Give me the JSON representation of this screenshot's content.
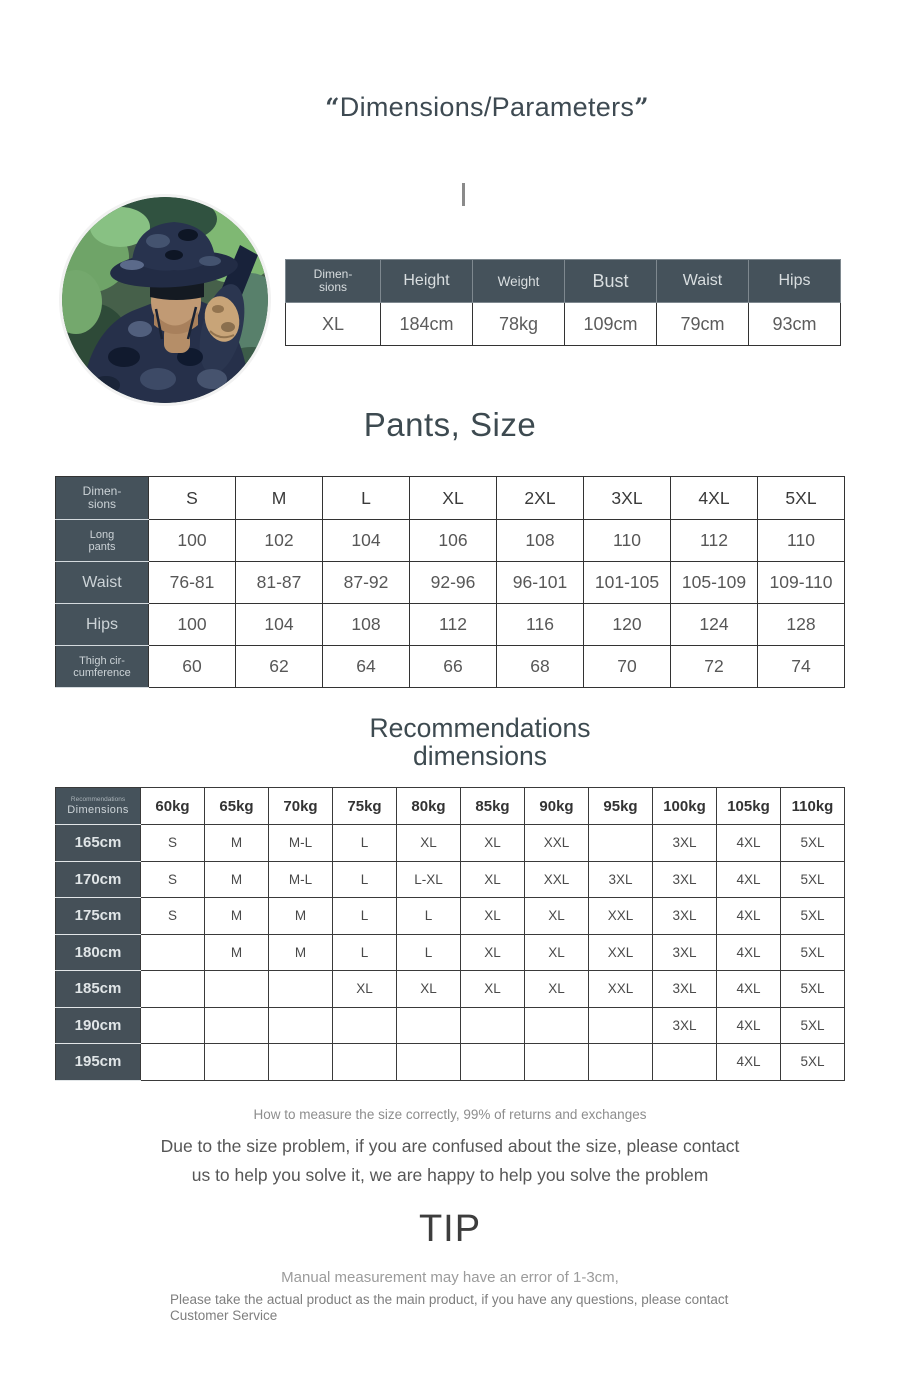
{
  "page": {
    "title": "Dimensions/Parameters",
    "quote_open": "“",
    "quote_close": "”"
  },
  "photo": {
    "description": "Man in blue camouflage jacket, boonie hat and sunglasses in green forest"
  },
  "model_table": {
    "corner": "Dimen-\nsions",
    "columns": [
      "Height",
      "Weight",
      "Bust",
      "Waist",
      "Hips"
    ],
    "rows": [
      {
        "label": "XL",
        "values": [
          "184cm",
          "78kg",
          "109cm",
          "79cm",
          "93cm"
        ]
      }
    ]
  },
  "pants_section": {
    "heading": "Pants, Size",
    "table": {
      "corner": "Dimen-\nsions",
      "columns": [
        "S",
        "M",
        "L",
        "XL",
        "2XL",
        "3XL",
        "4XL",
        "5XL"
      ],
      "rows": [
        {
          "label": "Long\npants",
          "values": [
            "100",
            "102",
            "104",
            "106",
            "108",
            "110",
            "112",
            "110"
          ]
        },
        {
          "label": "Waist",
          "values": [
            "76-81",
            "81-87",
            "87-92",
            "92-96",
            "96-101",
            "101-105",
            "105-109",
            "109-110"
          ]
        },
        {
          "label": "Hips",
          "values": [
            "100",
            "104",
            "108",
            "112",
            "116",
            "120",
            "124",
            "128"
          ]
        },
        {
          "label": "Thigh cir-\ncumference",
          "values": [
            "60",
            "62",
            "64",
            "66",
            "68",
            "70",
            "72",
            "74"
          ]
        }
      ]
    }
  },
  "recommendations_section": {
    "heading": "Recommendations\ndimensions",
    "table": {
      "corner_line1": "Recommendations",
      "corner_line2": "Dimensions",
      "columns": [
        "60kg",
        "65kg",
        "70kg",
        "75kg",
        "80kg",
        "85kg",
        "90kg",
        "95kg",
        "100kg",
        "105kg",
        "110kg"
      ],
      "rows": [
        {
          "label": "165cm",
          "values": [
            "S",
            "M",
            "M-L",
            "L",
            "XL",
            "XL",
            "XXL",
            "",
            "3XL",
            "4XL",
            "5XL"
          ]
        },
        {
          "label": "170cm",
          "values": [
            "S",
            "M",
            "M-L",
            "L",
            "L-XL",
            "XL",
            "XXL",
            "3XL",
            "3XL",
            "4XL",
            "5XL"
          ]
        },
        {
          "label": "175cm",
          "values": [
            "S",
            "M",
            "M",
            "L",
            "L",
            "XL",
            "XL",
            "XXL",
            "3XL",
            "4XL",
            "5XL"
          ]
        },
        {
          "label": "180cm",
          "values": [
            "",
            "M",
            "M",
            "L",
            "L",
            "XL",
            "XL",
            "XXL",
            "3XL",
            "4XL",
            "5XL"
          ]
        },
        {
          "label": "185cm",
          "values": [
            "",
            "",
            "",
            "XL",
            "XL",
            "XL",
            "XL",
            "XXL",
            "3XL",
            "4XL",
            "5XL"
          ]
        },
        {
          "label": "190cm",
          "values": [
            "",
            "",
            "",
            "",
            "",
            "",
            "",
            "",
            "3XL",
            "4XL",
            "5XL"
          ]
        },
        {
          "label": "195cm",
          "values": [
            "",
            "",
            "",
            "",
            "",
            "",
            "",
            "",
            "",
            "4XL",
            "5XL"
          ]
        }
      ]
    }
  },
  "notes": {
    "measure_note": "How to measure the size correctly, 99% of returns and exchanges",
    "contact": "Due to the size problem, if you are confused about the size, please contact\nus to help you solve it, we are happy to help you solve the problem",
    "tip_heading": "TIP",
    "tip_line1": "Manual measurement may have an error of 1-3cm,",
    "tip_line2": "Please take the actual product as the main product, if you have any questions, please contact Customer Service"
  },
  "colors": {
    "table_header_bg": "#45525b",
    "heading_text": "#3d4a52",
    "body_text": "#565656"
  }
}
